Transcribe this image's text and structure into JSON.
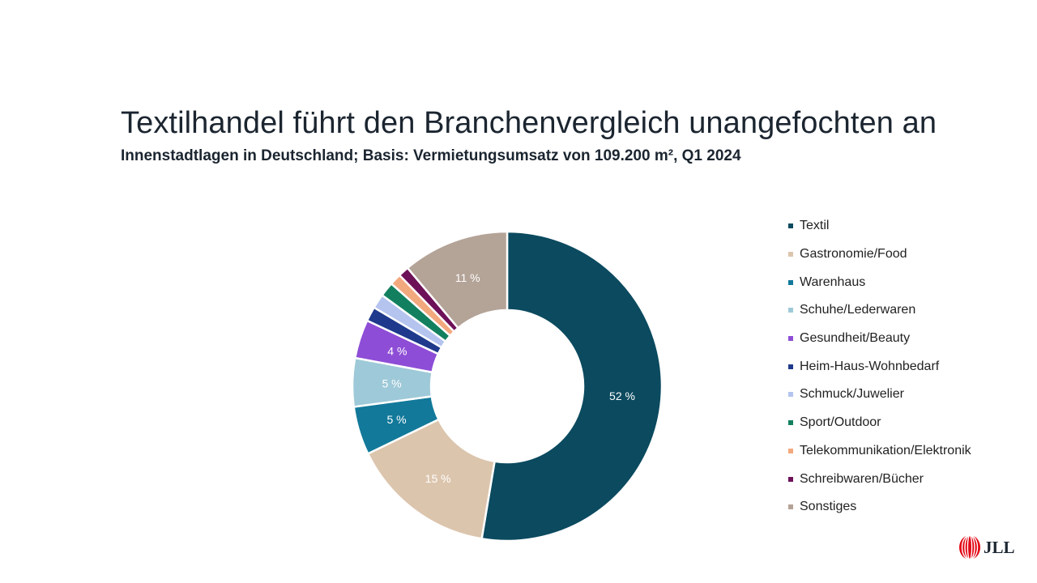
{
  "header": {
    "title": "Textilhandel führt den Branchenvergleich unangefochten an",
    "subtitle": "Innenstadtlagen in Deutschland; Basis: Vermietungsumsatz von 109.200 m², Q1 2024"
  },
  "chart_data": {
    "type": "pie",
    "donut": true,
    "legend_position": "right",
    "slices": [
      {
        "name": "Textil",
        "value": 52,
        "label": "52 %",
        "color": "#0b4a5f"
      },
      {
        "name": "Gastronomie/Food",
        "value": 15,
        "label": "15 %",
        "color": "#dcc5ad"
      },
      {
        "name": "Warenhaus",
        "value": 5,
        "label": "5 %",
        "color": "#12799a"
      },
      {
        "name": "Schuhe/Lederwaren",
        "value": 5,
        "label": "5 %",
        "color": "#9ec9d8"
      },
      {
        "name": "Gesundheit/Beauty",
        "value": 4,
        "label": "4 %",
        "color": "#8e4dd6"
      },
      {
        "name": "Heim-Haus-Wohnbedarf",
        "value": 1.5,
        "label": "",
        "color": "#1f3a8c"
      },
      {
        "name": "Schmuck/Juwelier",
        "value": 1.5,
        "label": "",
        "color": "#b4c4ef"
      },
      {
        "name": "Sport/Outdoor",
        "value": 1.5,
        "label": "",
        "color": "#12805f"
      },
      {
        "name": "Telekommunikation/Elektronik",
        "value": 1.2,
        "label": "",
        "color": "#f3a97e"
      },
      {
        "name": "Schreibwaren/Bücher",
        "value": 1.1,
        "label": "",
        "color": "#6d1158"
      },
      {
        "name": "Sonstiges",
        "value": 11,
        "label": "11 %",
        "color": "#b4a397"
      }
    ]
  },
  "logo": {
    "text": "JLL"
  }
}
